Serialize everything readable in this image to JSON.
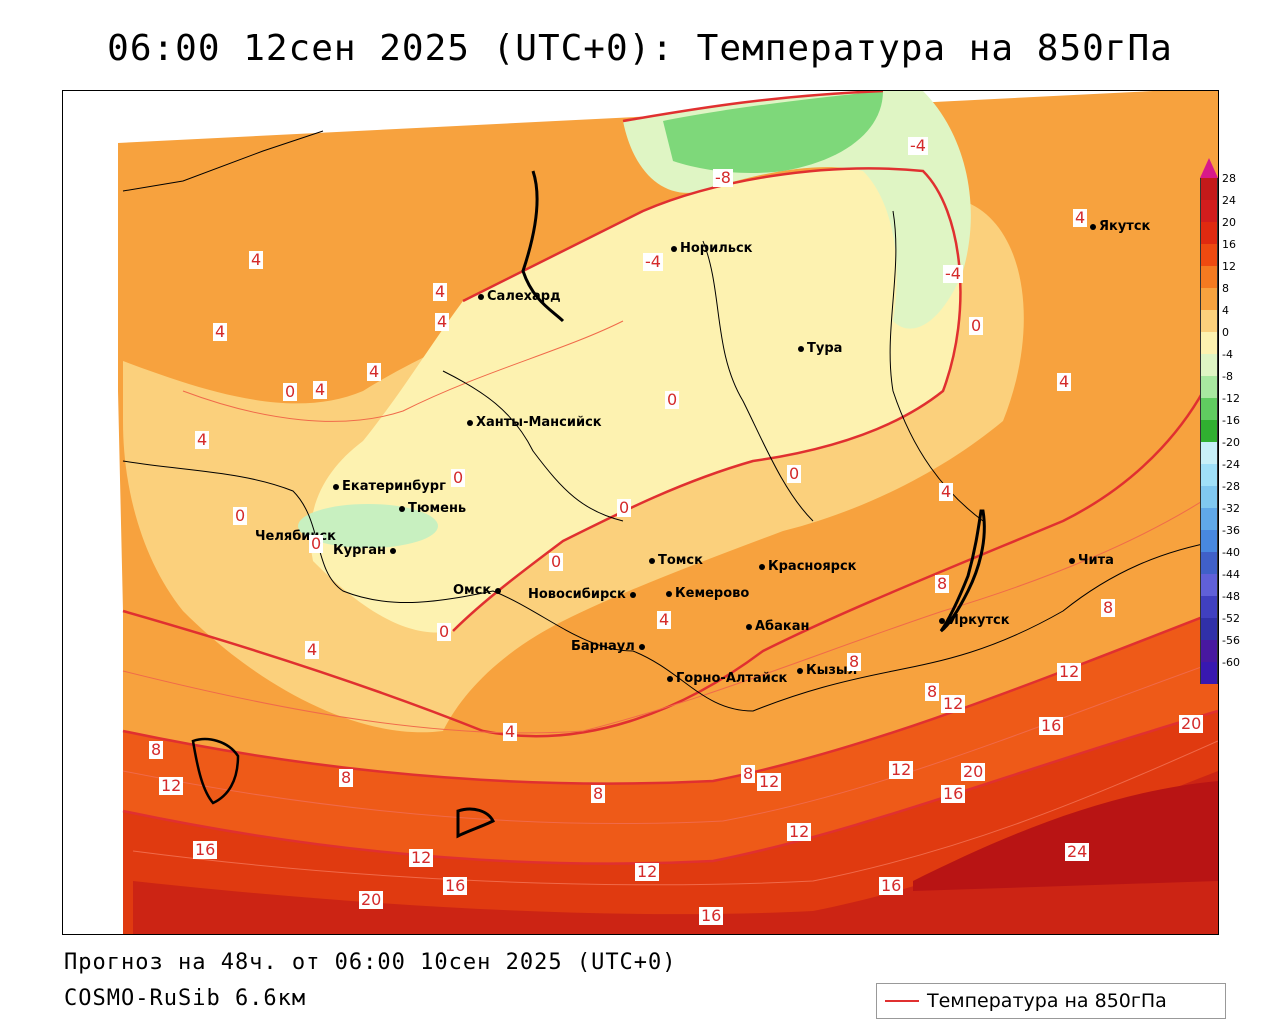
{
  "title": "06:00 12сен 2025 (UTC+0): Температура на 850гПа",
  "footer": {
    "forecast": "Прогноз на 48ч. от 06:00 10сен 2025 (UTC+0)",
    "model": "COSMO-RuSib 6.6км"
  },
  "legend": {
    "label": "Температура на 850гПа",
    "color": "#e03030"
  },
  "scale": {
    "ticks": [
      "28",
      "24",
      "20",
      "16",
      "12",
      "8",
      "4",
      "0",
      "-4",
      "-8",
      "-12",
      "-16",
      "-20",
      "-24",
      "-28",
      "-32",
      "-36",
      "-40",
      "-44",
      "-48",
      "-52",
      "-56",
      "-60"
    ],
    "colors": [
      "#c41a1a",
      "#d21d1d",
      "#e02a10",
      "#ee4a10",
      "#f47a20",
      "#f7a23e",
      "#fbd07c",
      "#fdf2b0",
      "#dff5c4",
      "#a8e8a0",
      "#60cc60",
      "#30b030",
      "#c8f0f8",
      "#a0e0f8",
      "#80c8f0",
      "#60a8e8",
      "#4888e0",
      "#4060c8",
      "#6060d8",
      "#4040c0",
      "#3030a8",
      "#4818a0",
      "#3818b0"
    ]
  },
  "cities": [
    {
      "name": "Якутск"
    },
    {
      "name": "Норильск"
    },
    {
      "name": "Салехард"
    },
    {
      "name": "Тура"
    },
    {
      "name": "Ханты-Мансийск"
    },
    {
      "name": "Екатеринбург"
    },
    {
      "name": "Тюмень"
    },
    {
      "name": "Челябинск"
    },
    {
      "name": "Курган"
    },
    {
      "name": "Омск"
    },
    {
      "name": "Новосибирск"
    },
    {
      "name": "Томск"
    },
    {
      "name": "Кемерово"
    },
    {
      "name": "Красноярск"
    },
    {
      "name": "Барнаул"
    },
    {
      "name": "Абакан"
    },
    {
      "name": "Горно-Алтайск"
    },
    {
      "name": "Кызыл"
    },
    {
      "name": "Иркутск"
    },
    {
      "name": "Чита"
    }
  ],
  "contour_labels": [
    "-8",
    "-4",
    "-4",
    "-4",
    "4",
    "4",
    "4",
    "4",
    "4",
    "4",
    "4",
    "4",
    "4",
    "4",
    "4",
    "4",
    "4",
    "0",
    "0",
    "0",
    "0",
    "0",
    "0",
    "0",
    "0",
    "0",
    "0",
    "8",
    "8",
    "8",
    "8",
    "8",
    "8",
    "8",
    "8",
    "12",
    "12",
    "12",
    "12",
    "12",
    "12",
    "12",
    "12",
    "16",
    "16",
    "16",
    "16",
    "16",
    "16",
    "20",
    "20",
    "20",
    "24"
  ]
}
